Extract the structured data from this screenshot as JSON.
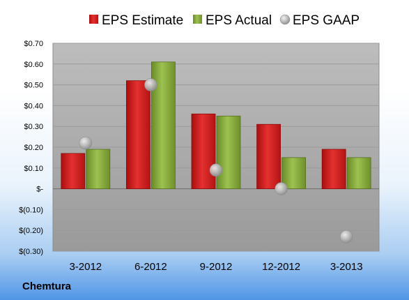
{
  "company": "Chemtura",
  "chart_data": {
    "type": "bar",
    "categories": [
      "3-2012",
      "6-2012",
      "9-2012",
      "12-2012",
      "3-2013"
    ],
    "series": [
      {
        "name": "EPS Estimate",
        "kind": "bar",
        "color": "#d42020",
        "values": [
          0.17,
          0.52,
          0.36,
          0.31,
          0.19
        ]
      },
      {
        "name": "EPS Actual",
        "kind": "bar",
        "color": "#8aad3e",
        "values": [
          0.19,
          0.61,
          0.35,
          0.15,
          0.15
        ]
      },
      {
        "name": "EPS GAAP",
        "kind": "scatter",
        "color": "#b8b8b8",
        "values": [
          0.22,
          0.5,
          0.09,
          0.0,
          -0.23
        ]
      }
    ],
    "ylim": [
      -0.3,
      0.7
    ],
    "yticks": [
      0.7,
      0.6,
      0.5,
      0.4,
      0.3,
      0.2,
      0.1,
      0.0,
      -0.1,
      -0.2,
      -0.3
    ],
    "ytick_labels": [
      "$0.70",
      "$0.60",
      "$0.50",
      "$0.40",
      "$0.30",
      "$0.20",
      "$0.10",
      "$-",
      "$(0.10)",
      "$(0.20)",
      "$(0.30)"
    ],
    "grid": true,
    "legend": "top",
    "title": "",
    "xlabel": "",
    "ylabel": ""
  }
}
